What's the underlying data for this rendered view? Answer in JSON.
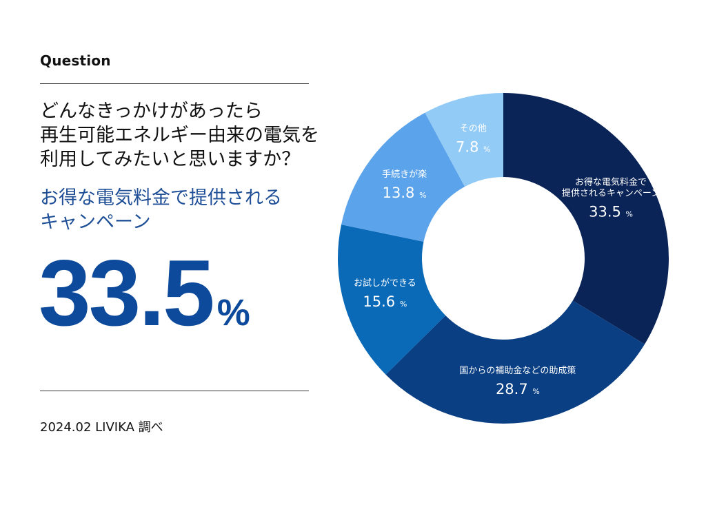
{
  "header": {
    "label": "Question"
  },
  "question_lines": [
    "どんなきっかけがあったら",
    "再生可能エネルギー由来の電気を",
    "利用してみたいと思いますか？"
  ],
  "answer_lines": [
    "お得な電気料金で提供される",
    "キャンペーン"
  ],
  "highlight": {
    "value": "33.5",
    "unit": "%"
  },
  "source": "2024.02 LIVIKA 調べ",
  "chart_data": {
    "type": "pie",
    "variant": "donut",
    "title": "",
    "start": "12 o'clock",
    "direction": "clockwise",
    "slices": [
      {
        "name": "お得な電気料金で提供されるキャンペーン",
        "name_lines": [
          "お得な電気料金で",
          "提供されるキャンペーン"
        ],
        "value": 33.5,
        "value_label": "33.5",
        "color": "#0b2457"
      },
      {
        "name": "国からの補助金などの助成策",
        "name_lines": [
          "国からの補助金などの助成策"
        ],
        "value": 28.7,
        "value_label": "28.7",
        "color": "#0a3f84"
      },
      {
        "name": "お試しができる",
        "name_lines": [
          "お試しができる"
        ],
        "value": 15.6,
        "value_label": "15.6",
        "color": "#0a6ab8"
      },
      {
        "name": "手続きが楽",
        "name_lines": [
          "手続きが楽"
        ],
        "value": 13.8,
        "value_label": "13.8",
        "color": "#5ba3ea"
      },
      {
        "name": "その他",
        "name_lines": [
          "その他"
        ],
        "value": 7.8,
        "value_label": "7.8",
        "color": "#93cbf7"
      }
    ],
    "unit": "%"
  }
}
